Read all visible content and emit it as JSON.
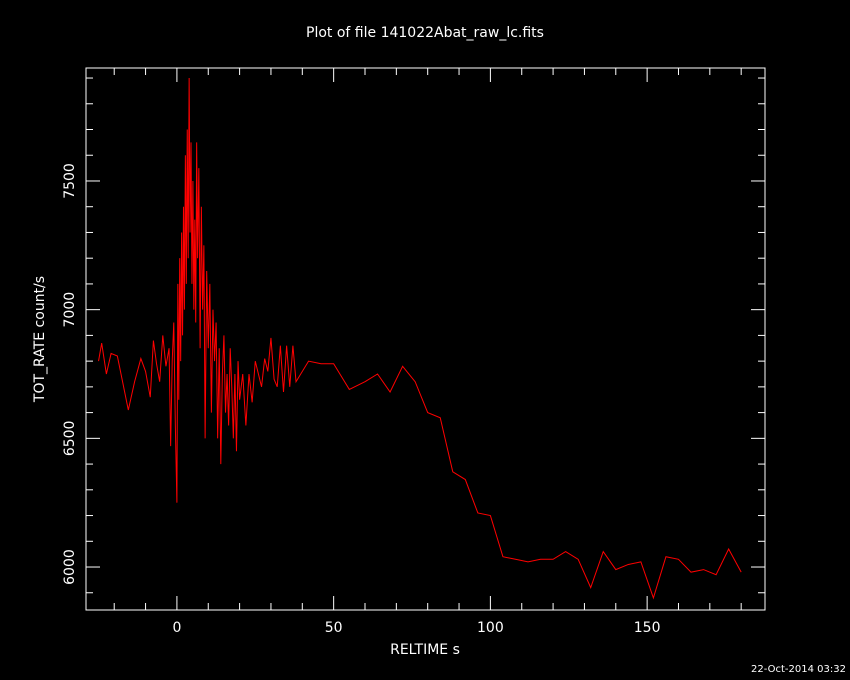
{
  "chart_data": {
    "type": "line",
    "title": "Plot of file 141022Abat_raw_lc.fits",
    "x_label": "RELTIME  s",
    "y_label": "TOT_RATE  count/s",
    "footer": "22-Oct-2014 03:32",
    "xlim": [
      -29,
      187.6
    ],
    "ylim": [
      5833,
      7939
    ],
    "xticks": [
      0,
      50,
      100,
      150
    ],
    "yticks": [
      6000,
      6500,
      7000,
      7500
    ],
    "xminorticks": [
      -20,
      -10,
      10,
      20,
      30,
      40,
      60,
      70,
      80,
      90,
      110,
      120,
      130,
      140,
      160,
      170,
      180
    ],
    "yminorticks": [
      5900,
      6100,
      6200,
      6300,
      6400,
      6600,
      6700,
      6800,
      6900,
      7100,
      7200,
      7300,
      7400,
      7600,
      7700,
      7800,
      7900
    ],
    "x": [
      -25,
      -24,
      -22.5,
      -21,
      -19,
      -17,
      -15.5,
      -13.5,
      -11.5,
      -10,
      -8.5,
      -7.5,
      -6.5,
      -5.5,
      -4.5,
      -3.5,
      -2.5,
      -2,
      -1.5,
      -1,
      -0.5,
      0,
      0.3,
      0.6,
      0.9,
      1.2,
      1.5,
      1.8,
      2.1,
      2.4,
      2.7,
      3,
      3.3,
      3.6,
      3.9,
      4.2,
      4.5,
      4.8,
      5.1,
      5.4,
      5.7,
      6,
      6.3,
      6.6,
      7,
      7.4,
      7.8,
      8.2,
      8.6,
      9,
      9.5,
      10,
      10.5,
      11,
      11.5,
      12,
      12.5,
      13,
      13.5,
      14,
      14.5,
      15,
      15.5,
      16,
      16.5,
      17,
      17.5,
      18,
      18.5,
      19,
      19.5,
      20,
      21,
      22,
      23,
      24,
      25,
      26,
      27,
      28,
      29,
      30,
      31,
      32,
      33,
      34,
      35,
      36,
      37,
      38,
      42,
      46,
      50,
      55,
      60,
      64,
      68,
      72,
      76,
      80,
      84,
      88,
      92,
      96,
      100,
      104,
      108,
      112,
      116,
      120,
      124,
      128,
      132,
      136,
      140,
      144,
      148,
      152,
      156,
      160,
      164,
      168,
      172,
      176,
      180
    ],
    "series": [
      {
        "name": "TOT_RATE",
        "color": "#ff0000",
        "values": [
          6800,
          6870,
          6750,
          6830,
          6820,
          6700,
          6610,
          6720,
          6810,
          6760,
          6660,
          6880,
          6790,
          6720,
          6900,
          6780,
          6850,
          6470,
          6800,
          6950,
          6550,
          6250,
          7100,
          6650,
          7200,
          6800,
          7300,
          6900,
          7400,
          7000,
          7600,
          7100,
          7700,
          7200,
          7900,
          7300,
          7650,
          7100,
          7500,
          7000,
          7350,
          6950,
          7650,
          7200,
          7550,
          6850,
          7400,
          7000,
          7250,
          6500,
          7150,
          6850,
          7100,
          6600,
          7000,
          6800,
          6950,
          6500,
          6850,
          6400,
          6750,
          6900,
          6600,
          6750,
          6550,
          6850,
          6700,
          6500,
          6750,
          6450,
          6800,
          6650,
          6750,
          6550,
          6750,
          6640,
          6800,
          6750,
          6700,
          6810,
          6760,
          6890,
          6730,
          6700,
          6860,
          6680,
          6860,
          6700,
          6860,
          6720,
          6800,
          6790,
          6790,
          6690,
          6720,
          6750,
          6680,
          6780,
          6720,
          6600,
          6580,
          6370,
          6340,
          6210,
          6200,
          6040,
          6030,
          6020,
          6030,
          6030,
          6060,
          6030,
          5920,
          6060,
          5990,
          6010,
          6020,
          5880,
          6040,
          6030,
          5980,
          5990,
          5970,
          6070,
          5980
        ]
      }
    ]
  }
}
